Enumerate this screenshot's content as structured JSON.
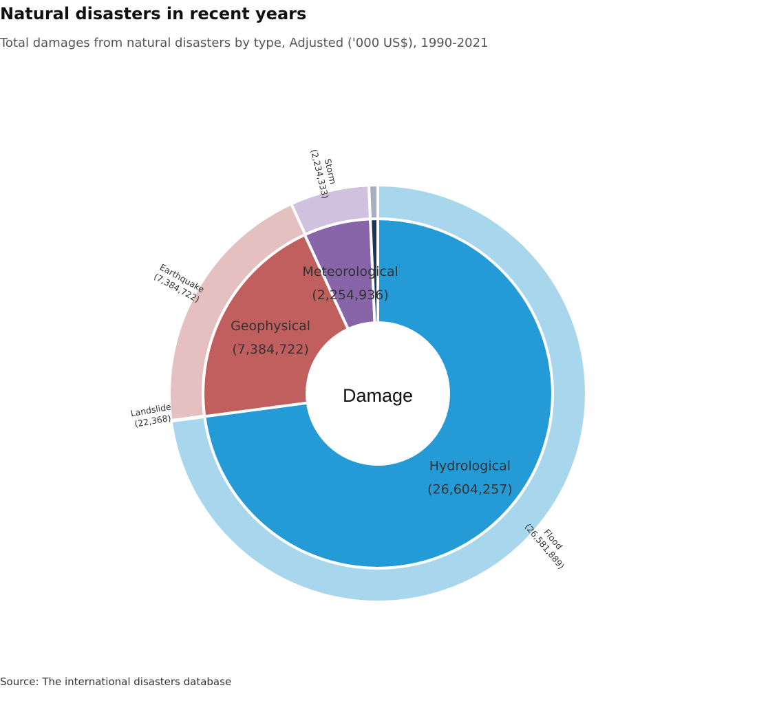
{
  "header": {
    "title": "Natural disasters in recent years",
    "subtitle": "Total damages from natural disasters by type, Adjusted ('000 US$), 1990-2021"
  },
  "footer": {
    "source": "Source: The international disasters database"
  },
  "chart_data": {
    "type": "pie",
    "variant": "sunburst",
    "center_label": "Damage",
    "inner_ring": [
      {
        "name": "Hydrological",
        "value": 26604257,
        "value_label": "(26,604,257)",
        "color": "#249ad6"
      },
      {
        "name": "Geophysical",
        "value": 7384722,
        "value_label": "(7,384,722)",
        "color": "#c15f5f"
      },
      {
        "name": "Meteorological",
        "value": 2254936,
        "value_label": "(2,254,936)",
        "color": "#8765a8"
      },
      {
        "name": "",
        "value": 250000,
        "value_label": "",
        "color": "#1f3350"
      }
    ],
    "outer_ring": [
      {
        "name": "Flood",
        "value": 26581889,
        "value_label": "(26,581,889)",
        "color": "#a8d7ed",
        "parent": "Hydrological"
      },
      {
        "name": "Landslide",
        "value": 22368,
        "value_label": "(22,368)",
        "color": "#a8d7ed",
        "parent": "Hydrological"
      },
      {
        "name": "Earthquake",
        "value": 7384722,
        "value_label": "(7,384,722)",
        "color": "#e5c0c1",
        "parent": "Geophysical"
      },
      {
        "name": "Storm",
        "value": 2234333,
        "value_label": "(2,234,333)",
        "color": "#d0c1de",
        "parent": "Meteorological"
      },
      {
        "name": "",
        "value": 250000,
        "value_label": "",
        "color": "#a8b0bd",
        "parent": ""
      }
    ]
  }
}
